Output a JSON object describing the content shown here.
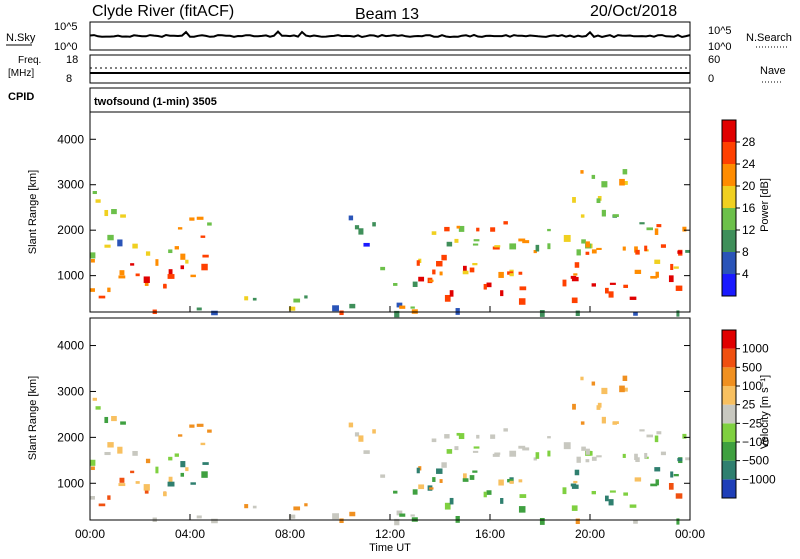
{
  "header": {
    "station": "Clyde River (fitACF)",
    "beam": "Beam 13",
    "date": "20/Oct/2018"
  },
  "status_panels": {
    "nsky_label": "N.Sky",
    "nsky_ticks": [
      "10^5",
      "10^0"
    ],
    "nsearch_label": "N.Search",
    "freq_label": "Freq.",
    "freq_unit": "[MHz]",
    "freq_ticks": [
      "18",
      "8"
    ],
    "nave_label": "Nave",
    "nave_ticks": [
      "60",
      "0"
    ],
    "cpid_label": "CPID",
    "program_label": "twofsound (1-min) 3505"
  },
  "chart_data": [
    {
      "type": "heatmap",
      "name": "power",
      "ylabel": "Slant Range [km]",
      "xlabel": "Time UT",
      "ytick_labels": [
        "1000",
        "2000",
        "3000",
        "4000"
      ],
      "ylim": [
        200,
        4600
      ],
      "xlim_hours": [
        0,
        24
      ],
      "colorbar": {
        "label": "Power [dB]",
        "tick_labels": [
          "4",
          "8",
          "12",
          "16",
          "20",
          "24",
          "28"
        ],
        "colors": [
          "#1a1aff",
          "#2a54b8",
          "#3f8f5a",
          "#6cc04a",
          "#f0d020",
          "#ff8c00",
          "#ff4000",
          "#e00000"
        ]
      }
    },
    {
      "type": "heatmap",
      "name": "velocity",
      "ylabel": "Slant Range [km]",
      "xlabel": "Time UT",
      "ytick_labels": [
        "1000",
        "2000",
        "3000",
        "4000"
      ],
      "ylim": [
        200,
        4600
      ],
      "xlim_hours": [
        0,
        24
      ],
      "colorbar": {
        "label": "Velocity [m s⁻¹]",
        "tick_labels": [
          "1000",
          "500",
          "100",
          "25",
          "−25",
          "−100",
          "−500",
          "−1000"
        ],
        "colors": [
          "#1f3fb8",
          "#2f7f6f",
          "#3fa040",
          "#7fd040",
          "#c8c8c0",
          "#f8c060",
          "#f09020",
          "#f05010",
          "#e00000"
        ]
      }
    }
  ],
  "time_axis": {
    "ticks": [
      "00:00",
      "04:00",
      "08:00",
      "12:00",
      "16:00",
      "20:00",
      "00:00"
    ],
    "label": "Time UT"
  }
}
